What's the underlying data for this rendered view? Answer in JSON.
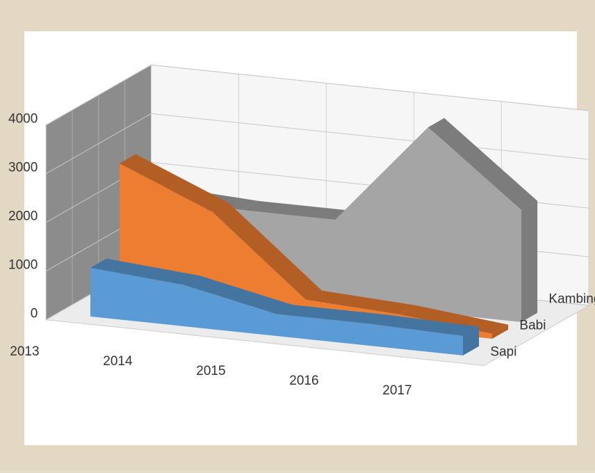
{
  "chart_data": {
    "type": "area3d",
    "categories": [
      "2013",
      "2014",
      "2015",
      "2016",
      "2017"
    ],
    "series": [
      {
        "name": "Sapi",
        "color": "#5b9bd5",
        "values": [
          1000,
          850,
          450,
          450,
          400
        ]
      },
      {
        "name": "Babi",
        "color": "#ed7d31",
        "values": [
          2800,
          2000,
          400,
          300,
          100
        ]
      },
      {
        "name": "Kambing",
        "color": "#a5a5a5",
        "values": [
          1800,
          1700,
          1700,
          3800,
          2300
        ]
      }
    ],
    "ylim": [
      0,
      4000
    ],
    "yticks": [
      0,
      1000,
      2000,
      3000,
      4000
    ],
    "grid": true
  }
}
